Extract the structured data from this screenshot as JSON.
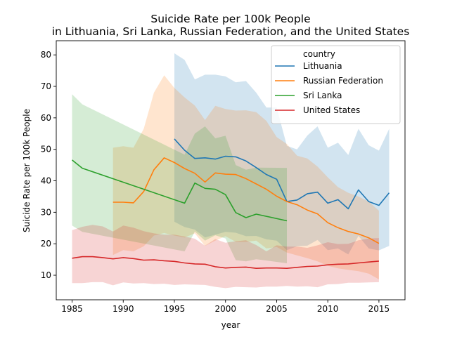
{
  "chart_data": {
    "type": "line",
    "title": [
      "Suicide Rate per 100k People",
      "in Lithuania, Sri Lanka, Russian Federation, and the United States"
    ],
    "xlabel": "year",
    "ylabel": "Suicide Rate per 100k People",
    "xlim": [
      1983.45,
      2017.55
    ],
    "ylim": [
      2.2,
      84.5
    ],
    "xticks": [
      1985,
      1990,
      1995,
      2000,
      2005,
      2010,
      2015
    ],
    "yticks": [
      10,
      20,
      30,
      40,
      50,
      60,
      70,
      80
    ],
    "grid": false,
    "legend": {
      "title": "country",
      "placement": "top-right"
    },
    "series": [
      {
        "name": "Lithuania",
        "color": "#1f77b4",
        "x": [
          1995,
          1996,
          1997,
          1998,
          1999,
          2000,
          2001,
          2002,
          2003,
          2004,
          2005,
          2006,
          2007,
          2008,
          2009,
          2010,
          2011,
          2012,
          2013,
          2014,
          2015,
          2016
        ],
        "y": [
          53.3,
          49.7,
          47.1,
          47.3,
          46.9,
          47.8,
          47.6,
          46.3,
          44.2,
          42.0,
          40.5,
          33.4,
          33.9,
          35.9,
          36.4,
          32.9,
          34.0,
          31.1,
          37.1,
          33.4,
          32.2,
          36.2
        ],
        "lower": [
          27.0,
          25.3,
          24.5,
          22.0,
          22.9,
          23.8,
          23.5,
          22.4,
          22.5,
          21.4,
          21.0,
          18.0,
          19.2,
          19.4,
          21.2,
          18.0,
          18.5,
          16.6,
          22.5,
          18.5,
          17.9,
          19.3
        ],
        "upper": [
          80.5,
          78.4,
          72.2,
          73.7,
          73.7,
          73.2,
          71.3,
          71.7,
          68.0,
          63.3,
          63.3,
          51.1,
          50.0,
          54.4,
          57.3,
          50.5,
          52.1,
          48.2,
          56.5,
          51.3,
          49.6,
          56.5
        ]
      },
      {
        "name": "Russian Federation",
        "color": "#ff7f0e",
        "x": [
          1989,
          1990,
          1991,
          1992,
          1993,
          1994,
          1995,
          1996,
          1997,
          1998,
          1999,
          2000,
          2001,
          2002,
          2003,
          2004,
          2005,
          2006,
          2007,
          2008,
          2009,
          2010,
          2011,
          2012,
          2013,
          2014,
          2015
        ],
        "y": [
          33.2,
          33.2,
          33.0,
          36.6,
          43.5,
          47.3,
          45.8,
          43.9,
          42.4,
          39.6,
          42.5,
          42.1,
          42.0,
          40.7,
          39.0,
          37.3,
          35.1,
          33.4,
          32.4,
          30.7,
          29.5,
          26.7,
          25.1,
          23.9,
          23.1,
          21.9,
          20.1
        ],
        "lower": [
          16.4,
          18.0,
          17.6,
          19.2,
          22.6,
          23.4,
          22.6,
          22.0,
          23.3,
          19.3,
          21.0,
          22.4,
          20.6,
          20.6,
          21.0,
          18.5,
          19.0,
          17.2,
          16.3,
          15.4,
          14.4,
          13.0,
          12.2,
          11.7,
          11.3,
          10.5,
          8.7
        ],
        "upper": [
          50.5,
          51.0,
          50.5,
          56.5,
          68.0,
          73.5,
          69.5,
          66.5,
          63.9,
          59.3,
          63.8,
          62.8,
          62.3,
          62.4,
          61.8,
          59.0,
          53.9,
          51.7,
          48.0,
          47.1,
          44.5,
          41.1,
          38.0,
          36.2,
          35.0,
          33.4,
          30.5
        ]
      },
      {
        "name": "Sri Lanka",
        "color": "#2ca02c",
        "x": [
          1985,
          1986,
          1996,
          1997,
          1998,
          1999,
          2000,
          2001,
          2002,
          2003,
          2006
        ],
        "y": [
          46.6,
          44.0,
          32.9,
          39.3,
          37.6,
          37.3,
          35.6,
          29.9,
          28.3,
          29.4,
          27.3
        ],
        "lower": [
          25.8,
          23.8,
          17.6,
          23.9,
          21.0,
          22.7,
          21.7,
          14.8,
          14.4,
          15.1,
          13.8
        ],
        "upper": [
          67.5,
          64.3,
          48.3,
          55.0,
          57.3,
          53.5,
          54.3,
          45.0,
          43.5,
          44.2,
          44.1
        ]
      },
      {
        "name": "United States",
        "color": "#d62728",
        "x": [
          1985,
          1986,
          1987,
          1988,
          1989,
          1990,
          1991,
          1992,
          1993,
          1994,
          1995,
          1996,
          1997,
          1998,
          1999,
          2000,
          2001,
          2002,
          2003,
          2004,
          2005,
          2006,
          2007,
          2008,
          2009,
          2010,
          2011,
          2012,
          2013,
          2014,
          2015
        ],
        "y": [
          15.4,
          15.9,
          15.9,
          15.6,
          15.2,
          15.6,
          15.3,
          14.8,
          14.9,
          14.6,
          14.4,
          13.9,
          13.6,
          13.5,
          12.7,
          12.3,
          12.5,
          12.6,
          12.2,
          12.3,
          12.3,
          12.2,
          12.5,
          12.8,
          12.9,
          13.3,
          13.5,
          13.6,
          13.9,
          14.2,
          14.5
        ],
        "lower": [
          7.5,
          7.5,
          7.8,
          7.8,
          6.8,
          7.7,
          7.4,
          7.5,
          7.2,
          7.3,
          6.9,
          7.1,
          7.0,
          6.9,
          6.3,
          5.9,
          6.3,
          6.2,
          6.1,
          6.4,
          6.4,
          6.6,
          6.4,
          6.5,
          6.2,
          7.1,
          7.2,
          7.6,
          7.6,
          7.7,
          7.8
        ],
        "upper": [
          24.3,
          25.4,
          26.0,
          25.5,
          23.9,
          25.8,
          25.1,
          24.0,
          23.3,
          22.9,
          22.9,
          22.3,
          21.6,
          19.4,
          21.5,
          20.3,
          20.8,
          21.1,
          19.6,
          17.6,
          19.5,
          19.1,
          19.1,
          18.7,
          19.5,
          20.5,
          19.9,
          20.0,
          21.1,
          21.7,
          21.8
        ]
      }
    ]
  }
}
